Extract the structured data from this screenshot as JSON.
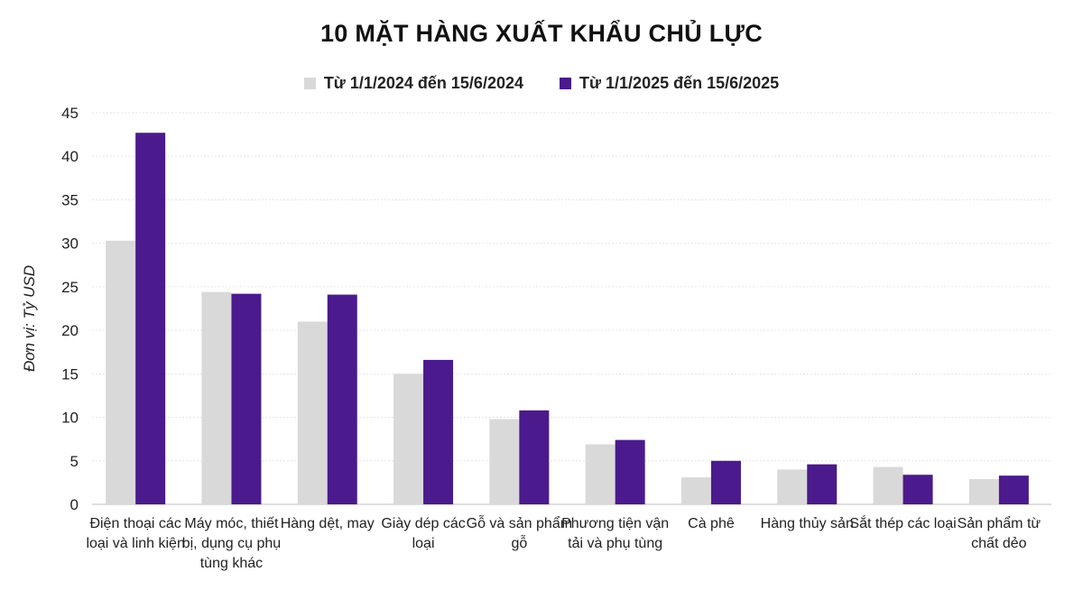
{
  "chart_data": {
    "type": "bar",
    "title": "10 MẶT HÀNG XUẤT KHẨU CHỦ LỰC",
    "ylabel": "Đơn vị: Tỷ USD",
    "xlabel": "",
    "ylim": [
      0,
      45
    ],
    "yticks": [
      0,
      5,
      10,
      15,
      20,
      25,
      30,
      35,
      40,
      45
    ],
    "grid": true,
    "legend_position": "top",
    "categories": [
      "Điện thoại các loại và linh kiện",
      "Máy móc, thiết bị, dụng cụ phụ tùng khác",
      "Hàng dệt, may",
      "Giày dép các loại",
      "Gỗ và sản phẩm gỗ",
      "Phương tiện vận tải và phụ tùng",
      "Cà phê",
      "Hàng thủy sản",
      "Sắt thép các loại",
      "Sản phẩm từ chất dẻo"
    ],
    "series": [
      {
        "name": "Từ 1/1/2024 đến 15/6/2024",
        "color": "#d9d9d9",
        "values": [
          30.3,
          24.4,
          21.0,
          15.0,
          9.8,
          6.9,
          3.1,
          4.0,
          4.3,
          2.9
        ]
      },
      {
        "name": "Từ 1/1/2025 đến 15/6/2025",
        "color": "#4b1a8c",
        "values": [
          42.7,
          24.2,
          24.1,
          16.6,
          10.8,
          7.4,
          5.0,
          4.6,
          3.4,
          3.3
        ]
      }
    ]
  }
}
